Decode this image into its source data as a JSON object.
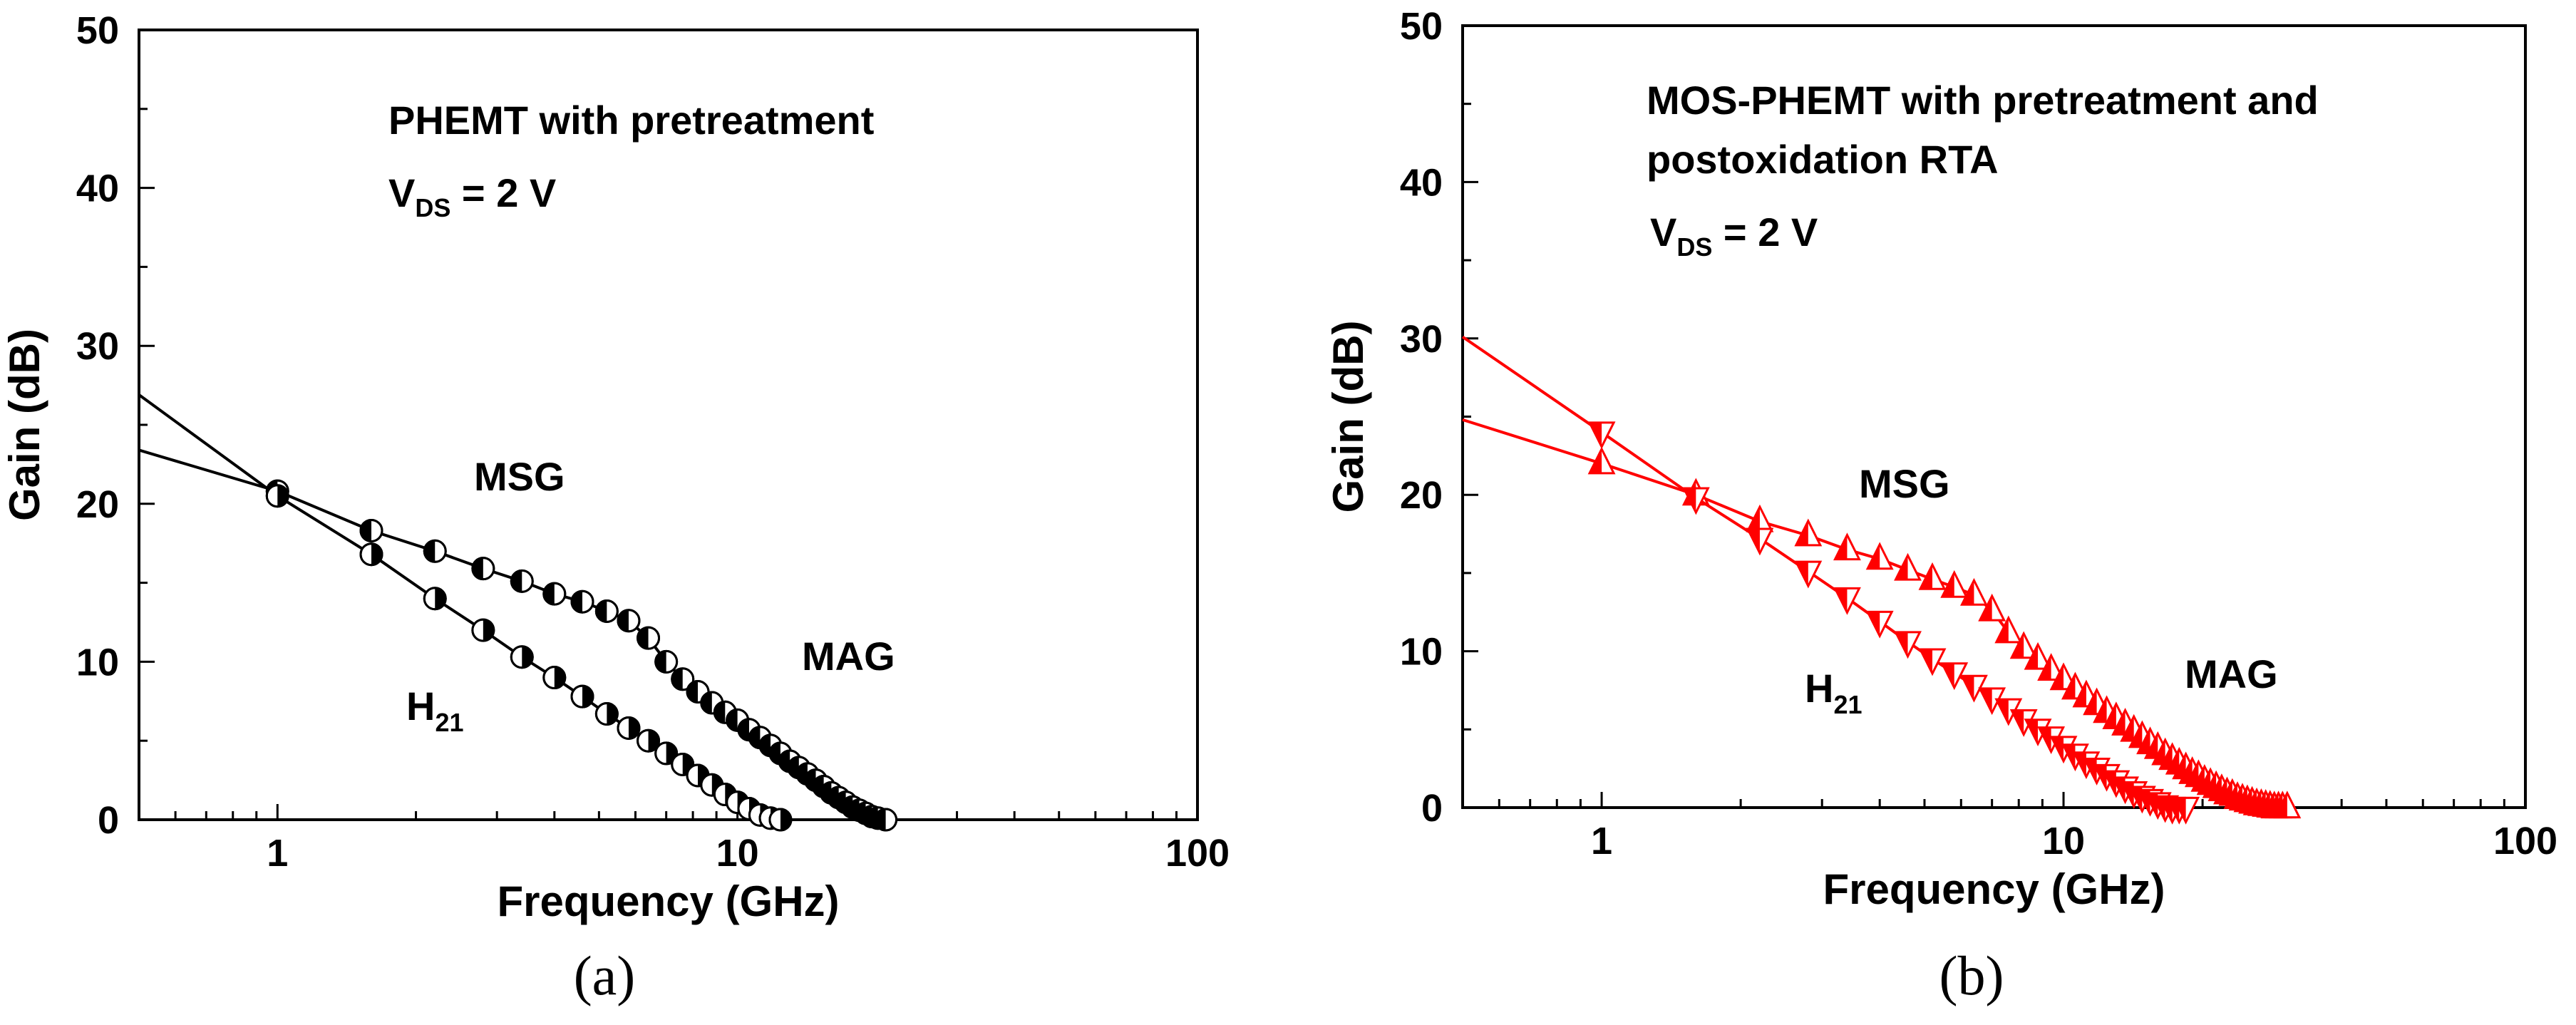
{
  "chart_data": [
    {
      "type": "line",
      "panel_label": "(a)",
      "color": "#000000",
      "xlabel": "Frequency (GHz)",
      "ylabel": "Gain (dB)",
      "xscale": "log",
      "xlim": [
        0.5,
        100
      ],
      "ylim": [
        0,
        50
      ],
      "x_ticks": [
        1,
        10,
        100
      ],
      "y_ticks": [
        0,
        10,
        20,
        30,
        40,
        50
      ],
      "annotations": {
        "device": "PHEMT with pretreatment",
        "bias_main": "V",
        "bias_sub": "DS",
        "bias_rest": " = 2 V",
        "msg": "MSG",
        "mag": "MAG",
        "h21_main": "H",
        "h21_sub": "21"
      },
      "series": [
        {
          "name": "MSG/MAG",
          "marker": "half-circle-left",
          "x": [
            0.5,
            1.0,
            1.6,
            2.2,
            2.8,
            3.4,
            4.0,
            4.6,
            5.2,
            5.8,
            6.4,
            7.0,
            7.6,
            8.2,
            8.8,
            9.4,
            10.0,
            10.6,
            11.2,
            11.8,
            12.4,
            13.0,
            13.6,
            14.2,
            14.8,
            15.4,
            16.0,
            16.6,
            17.2,
            17.8,
            18.4,
            19.0,
            19.6,
            20.2,
            21.0
          ],
          "y": [
            23.4,
            20.8,
            18.3,
            17.0,
            15.9,
            15.1,
            14.3,
            13.8,
            13.2,
            12.6,
            11.5,
            10.0,
            8.9,
            8.1,
            7.4,
            6.8,
            6.3,
            5.7,
            5.2,
            4.7,
            4.2,
            3.7,
            3.3,
            2.9,
            2.5,
            2.1,
            1.7,
            1.4,
            1.1,
            0.8,
            0.6,
            0.4,
            0.2,
            0.1,
            0.0
          ]
        },
        {
          "name": "H21",
          "marker": "half-circle-right",
          "x": [
            0.5,
            1.0,
            1.6,
            2.2,
            2.8,
            3.4,
            4.0,
            4.6,
            5.2,
            5.8,
            6.4,
            7.0,
            7.6,
            8.2,
            8.8,
            9.4,
            10.0,
            10.6,
            11.2,
            11.8,
            12.4
          ],
          "y": [
            26.9,
            20.5,
            16.8,
            14.0,
            12.0,
            10.3,
            9.0,
            7.8,
            6.7,
            5.8,
            5.0,
            4.2,
            3.5,
            2.8,
            2.2,
            1.6,
            1.1,
            0.7,
            0.3,
            0.1,
            0.0
          ]
        }
      ]
    },
    {
      "type": "line",
      "panel_label": "(b)",
      "color": "#ff0000",
      "xlabel": "Frequency (GHz)",
      "ylabel": "Gain (dB)",
      "xscale": "log",
      "xlim": [
        0.5,
        100
      ],
      "ylim": [
        0,
        50
      ],
      "x_ticks": [
        1,
        10,
        100
      ],
      "y_ticks": [
        0,
        10,
        20,
        30,
        40,
        50
      ],
      "annotations": {
        "device_line1": "MOS-PHEMT with pretreatment and",
        "device_line2": "postoxidation RTA",
        "bias_main": "V",
        "bias_sub": "DS",
        "bias_rest": " = 2 V",
        "msg": "MSG",
        "mag": "MAG",
        "h21_main": "H",
        "h21_sub": "21"
      },
      "series": [
        {
          "name": "MSG/MAG",
          "marker": "half-triangle-up",
          "x": [
            0.5,
            1.0,
            1.6,
            2.2,
            2.8,
            3.4,
            4.0,
            4.6,
            5.2,
            5.8,
            6.4,
            7.0,
            7.6,
            8.2,
            8.8,
            9.4,
            10.0,
            10.6,
            11.2,
            11.8,
            12.4,
            13.0,
            13.6,
            14.2,
            14.8,
            15.4,
            16.0,
            16.6,
            17.2,
            17.8,
            18.4,
            19.0,
            19.6,
            20.2,
            20.8,
            21.4,
            22.0,
            22.6,
            23.2,
            23.8,
            24.4,
            25.0,
            25.6,
            26.2,
            26.8,
            27.4,
            28.0,
            28.6,
            29.2,
            29.8,
            30.5
          ],
          "y": [
            24.8,
            22.0,
            20.0,
            18.3,
            17.4,
            16.5,
            15.9,
            15.2,
            14.6,
            14.1,
            13.6,
            12.6,
            11.2,
            10.2,
            9.5,
            8.8,
            8.2,
            7.6,
            7.1,
            6.6,
            6.1,
            5.7,
            5.3,
            4.9,
            4.5,
            4.1,
            3.8,
            3.4,
            3.1,
            2.8,
            2.5,
            2.2,
            2.0,
            1.7,
            1.5,
            1.3,
            1.1,
            0.9,
            0.8,
            0.6,
            0.5,
            0.4,
            0.3,
            0.2,
            0.15,
            0.1,
            0.05,
            0.0,
            0.0,
            0.0,
            0.0
          ]
        },
        {
          "name": "H21",
          "marker": "half-triangle-down",
          "x": [
            0.5,
            1.0,
            1.6,
            2.2,
            2.8,
            3.4,
            4.0,
            4.6,
            5.2,
            5.8,
            6.4,
            7.0,
            7.6,
            8.2,
            8.8,
            9.4,
            10.0,
            10.6,
            11.2,
            11.8,
            12.4,
            13.0,
            13.6,
            14.2,
            14.8,
            15.4,
            16.0,
            16.6,
            17.2,
            17.8,
            18.4
          ],
          "y": [
            30.1,
            24.0,
            19.8,
            17.2,
            15.1,
            13.4,
            11.9,
            10.6,
            9.5,
            8.6,
            7.8,
            7.0,
            6.3,
            5.6,
            5.0,
            4.5,
            3.9,
            3.4,
            2.9,
            2.5,
            2.1,
            1.7,
            1.3,
            1.0,
            0.7,
            0.5,
            0.3,
            0.1,
            0.0,
            0.0,
            0.0
          ]
        }
      ]
    }
  ]
}
